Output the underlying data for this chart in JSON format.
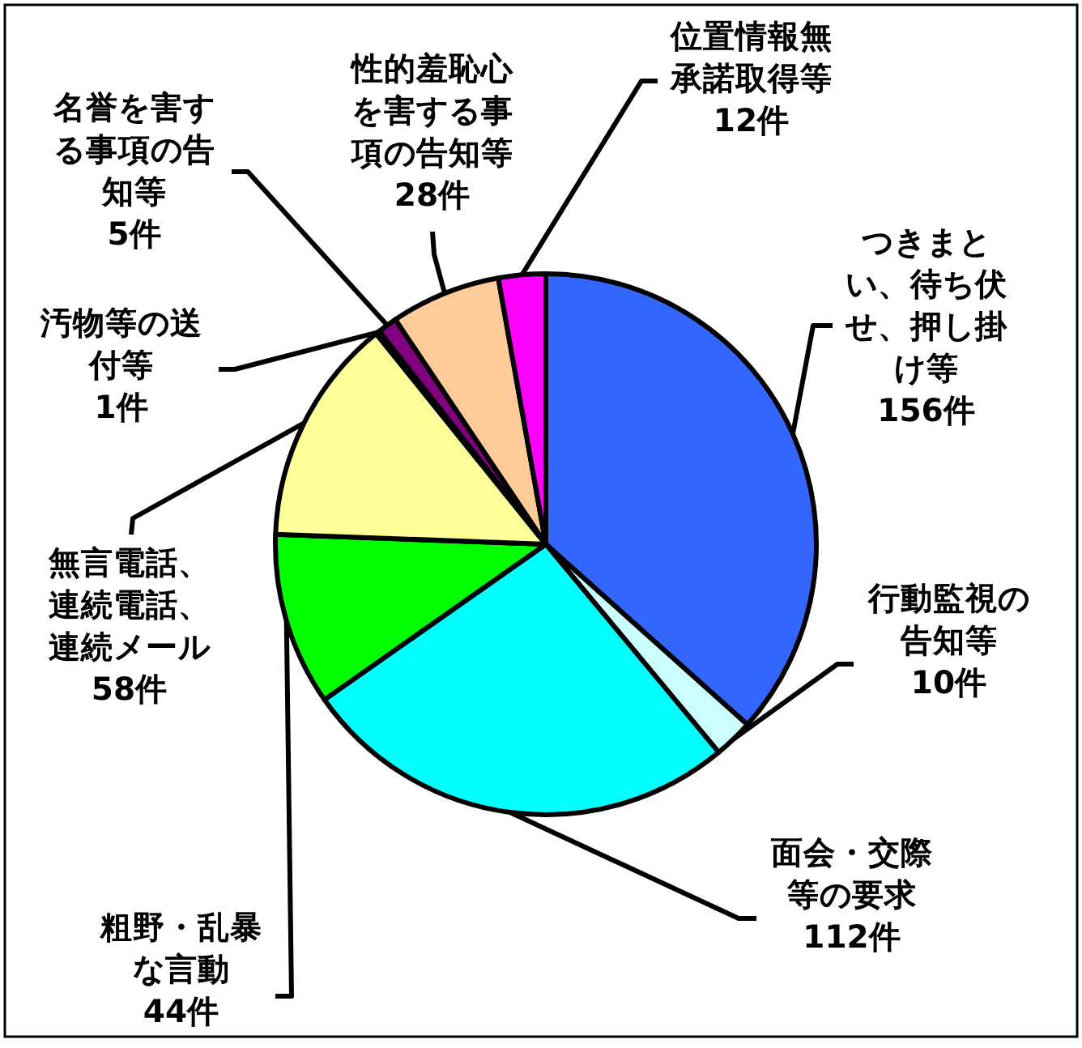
{
  "chart_data": {
    "type": "pie",
    "categories": [
      "つきまとい、待ち伏せ、押し掛け等",
      "行動監視の告知等",
      "面会・交際等の要求",
      "粗野・乱暴な言動",
      "無言電話、連続電話、連続メール",
      "汚物等の送付等",
      "名誉を害する事項の告知等",
      "性的羞恥心を害する事項の告知等",
      "位置情報無承諾取得等"
    ],
    "values": [
      156,
      10,
      112,
      44,
      58,
      1,
      5,
      28,
      12
    ],
    "colors": [
      "#3366ff",
      "#ccffff",
      "#00ffff",
      "#00ff00",
      "#ffff99",
      "#000000",
      "#800080",
      "#ffcc99",
      "#ff00ff"
    ],
    "value_labels": [
      "156件",
      "10件",
      "112件",
      "44件",
      "58件",
      "1件",
      "5件",
      "28件",
      "12件"
    ]
  }
}
